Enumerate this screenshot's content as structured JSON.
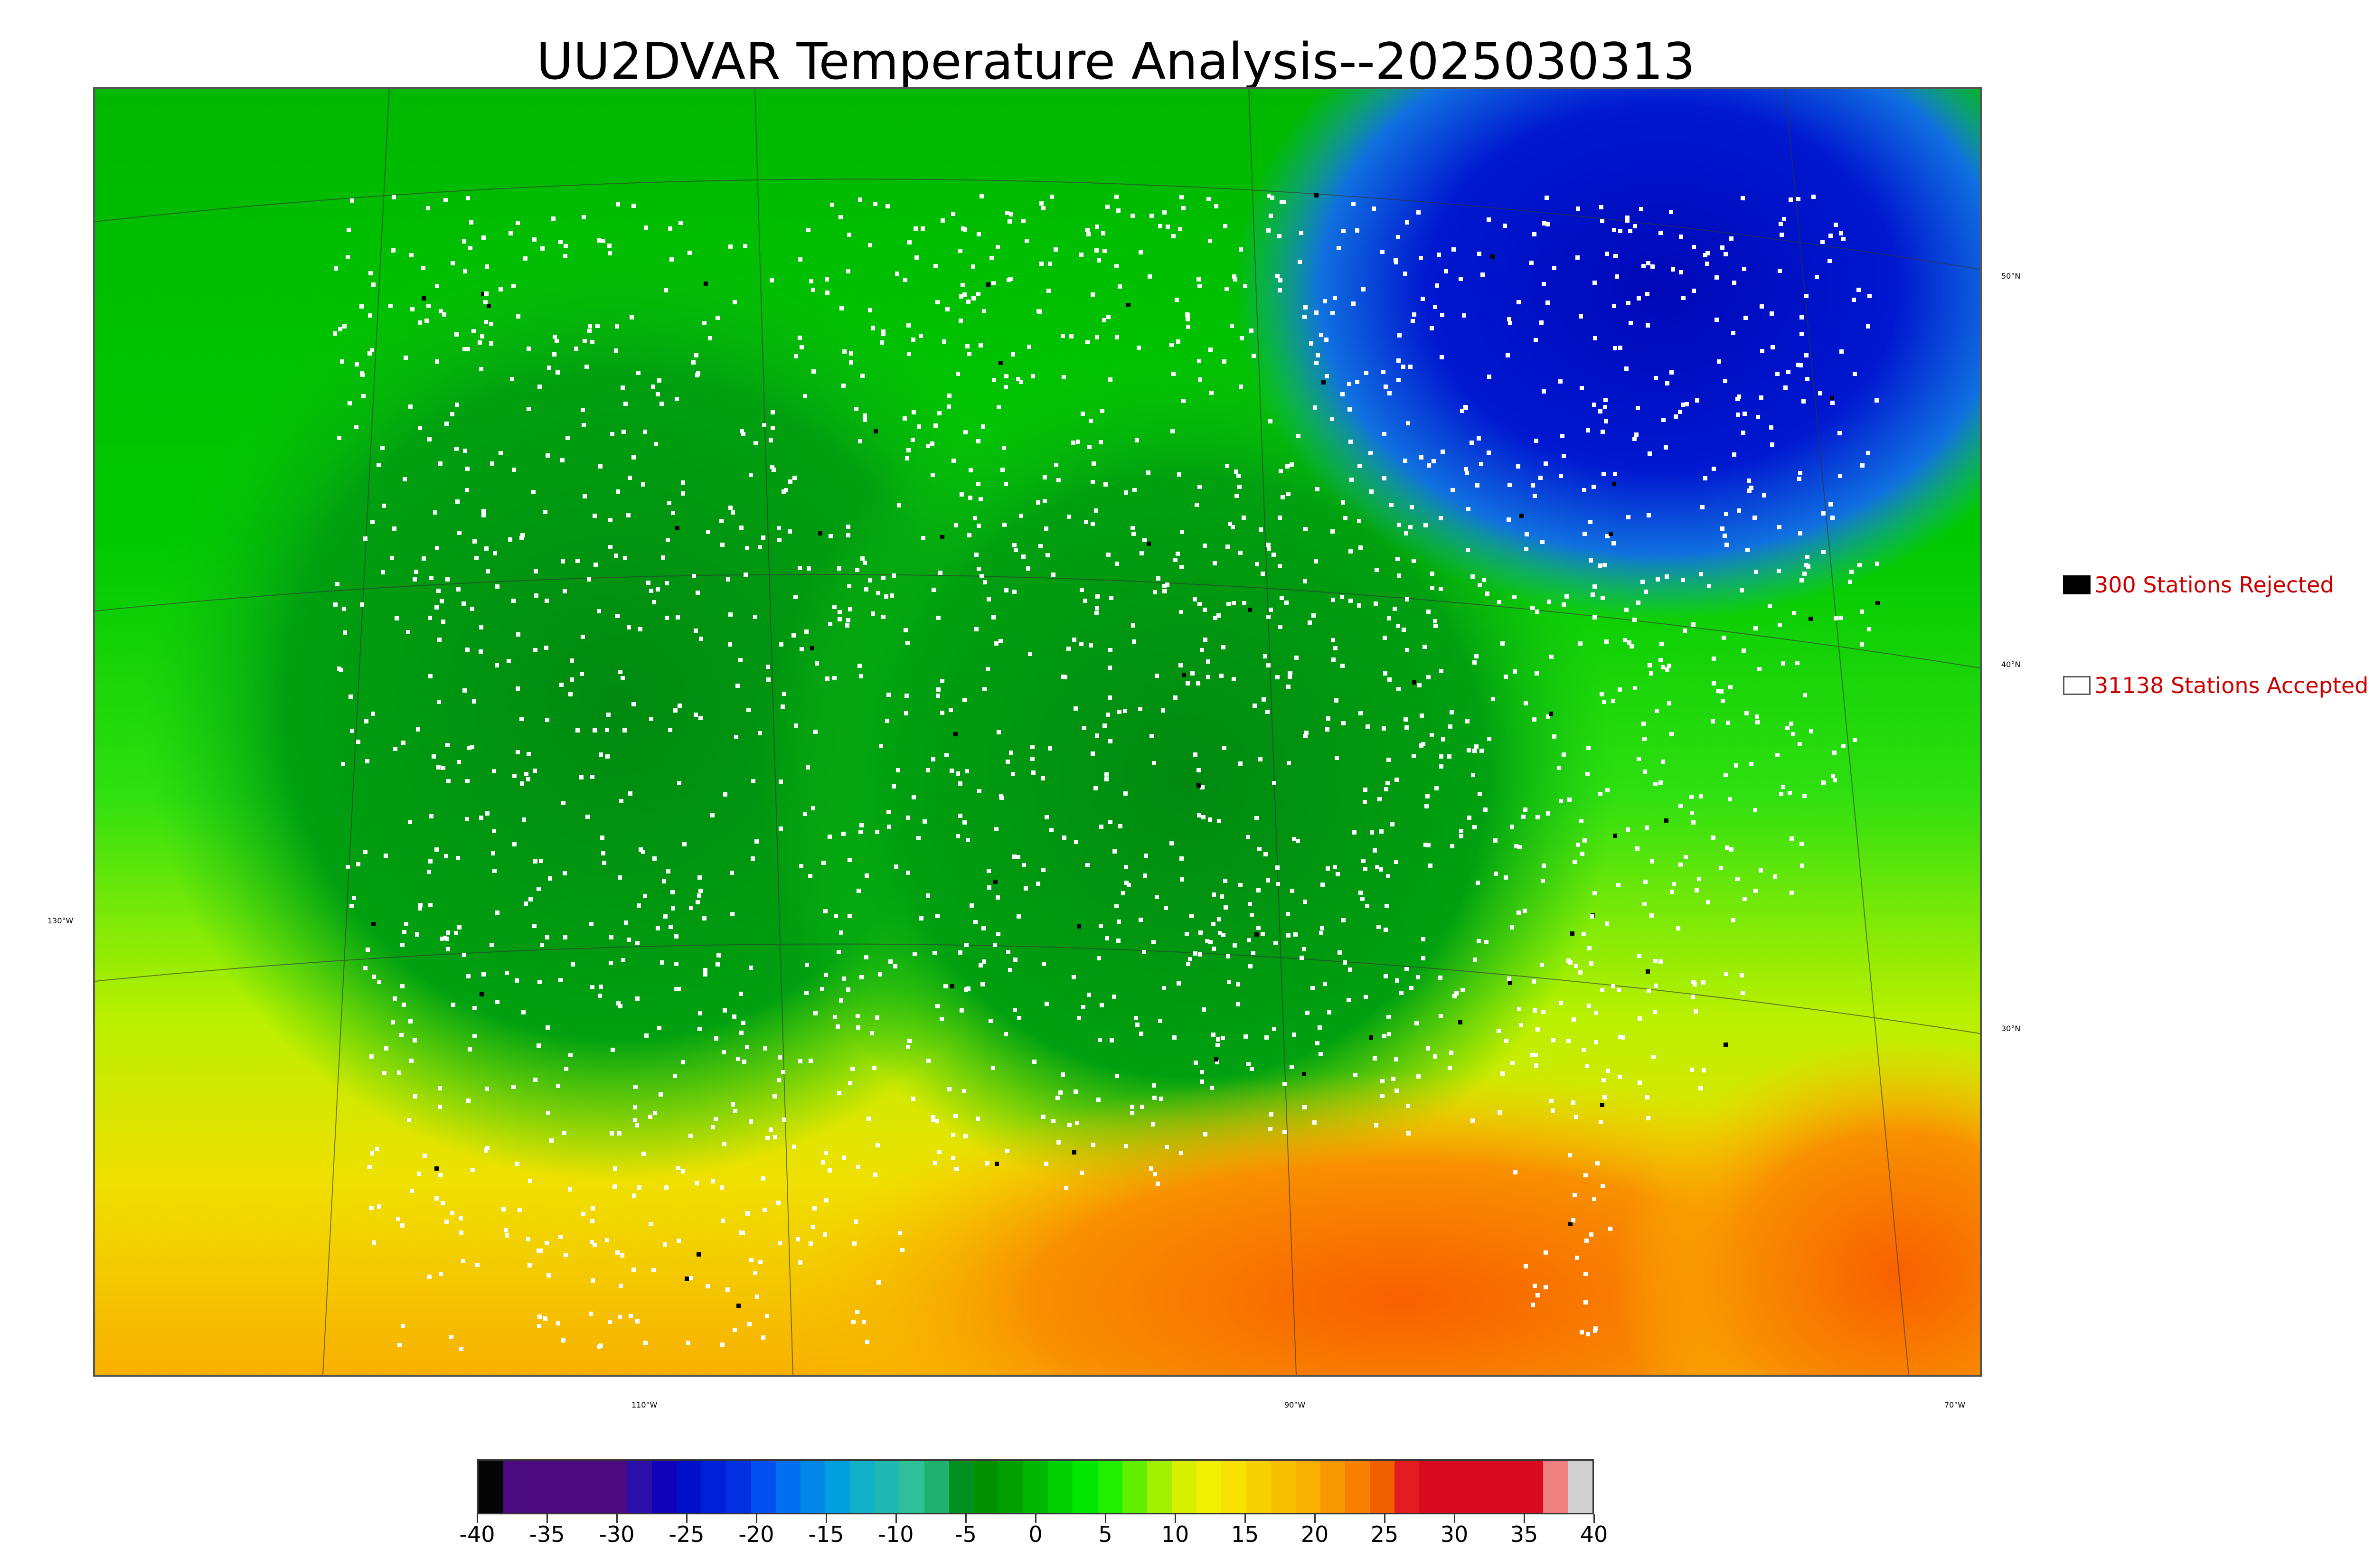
{
  "title": "UU2DVAR Temperature Analysis--2025030313",
  "legend": {
    "rejected": "300 Stations Rejected",
    "accepted": "31138 Stations Accepted"
  },
  "graticule": {
    "lat_labels": [
      "50°N",
      "40°N",
      "30°N"
    ],
    "lon_labels": [
      "130°W",
      "110°W",
      "90°W",
      "70°W"
    ]
  },
  "colorbar": {
    "ticks": [
      "-40",
      "-35",
      "-30",
      "-25",
      "-20",
      "-15",
      "-10",
      "-5",
      "0",
      "5",
      "10",
      "15",
      "20",
      "25",
      "30",
      "35",
      "40"
    ],
    "colors": [
      "#050505",
      "#4b0a80",
      "#4b0a80",
      "#4b0a80",
      "#4b0a80",
      "#4b0a80",
      "#2a10a8",
      "#1000b8",
      "#0010c8",
      "#0020d8",
      "#0030e0",
      "#0050f0",
      "#0070f0",
      "#0088e8",
      "#00a0e0",
      "#10b0c8",
      "#20b8b0",
      "#30c098",
      "#20b070",
      "#009020",
      "#009000",
      "#00a000",
      "#00b800",
      "#00d000",
      "#00e800",
      "#20f000",
      "#60f000",
      "#a0f000",
      "#d8f000",
      "#f0f000",
      "#f8e000",
      "#f8d000",
      "#f8c000",
      "#f8b000",
      "#f89800",
      "#f88000",
      "#f06000",
      "#e01c20",
      "#d80a20",
      "#d80a20",
      "#d80a20",
      "#d80a20",
      "#d80a20",
      "#f08080",
      "#d0d0d0"
    ]
  },
  "colors": {
    "cold_core": "#0010c0",
    "cool_blue": "#2090e0",
    "teal": "#20b8a0",
    "dark_green": "#009a10",
    "bright_green": "#10e010",
    "yellow_green": "#d0f000",
    "orange": "#f8a000",
    "red_orange": "#f86000",
    "station_accepted": "#ffffff",
    "station_rejected": "#000000"
  }
}
